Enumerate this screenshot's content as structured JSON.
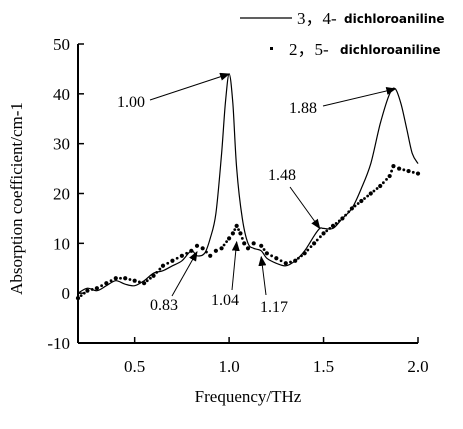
{
  "chart_data": {
    "type": "line",
    "xlabel": "Frequency/THz",
    "ylabel": "Absorption coefficient/cm-1",
    "xlim": [
      0.2,
      2.0
    ],
    "ylim": [
      -10,
      50
    ],
    "xticks": [
      0.5,
      1.0,
      1.5,
      2.0
    ],
    "xtick_labels": [
      "0.5",
      "1.0",
      "1.5",
      "2.0"
    ],
    "yticks": [
      -10,
      0,
      10,
      20,
      30,
      40,
      50
    ],
    "ytick_labels": [
      "-10",
      "0",
      "10",
      "20",
      "30",
      "40",
      "50"
    ],
    "legend_position": "top-right",
    "series": [
      {
        "name": "3，4-dichloroaniline",
        "legend_number": "3，4-",
        "legend_name": "dichloroaniline",
        "style": "line",
        "x": [
          0.2,
          0.25,
          0.3,
          0.35,
          0.4,
          0.45,
          0.5,
          0.55,
          0.6,
          0.65,
          0.7,
          0.75,
          0.8,
          0.83,
          0.87,
          0.9,
          0.93,
          0.96,
          0.98,
          1.0,
          1.02,
          1.04,
          1.07,
          1.1,
          1.13,
          1.17,
          1.2,
          1.25,
          1.3,
          1.35,
          1.4,
          1.45,
          1.48,
          1.5,
          1.55,
          1.6,
          1.65,
          1.7,
          1.75,
          1.8,
          1.85,
          1.88,
          1.91,
          1.94,
          1.97,
          2.0
        ],
        "y": [
          0.0,
          1.0,
          0.5,
          1.5,
          2.5,
          1.8,
          1.5,
          2.5,
          4.0,
          4.5,
          5.5,
          6.5,
          8.5,
          7.5,
          8.0,
          11.0,
          16.0,
          28.0,
          38.0,
          44.0,
          38.0,
          25.0,
          15.0,
          10.0,
          9.0,
          8.5,
          7.0,
          6.0,
          5.5,
          6.5,
          8.5,
          11.5,
          13.0,
          13.0,
          13.0,
          15.0,
          17.0,
          21.0,
          26.0,
          34.0,
          40.0,
          41.0,
          38.0,
          33.0,
          28.0,
          26.0
        ]
      },
      {
        "name": "2，5-dichloroaniline",
        "legend_number": "2，5-",
        "legend_name": "dichloroaniline",
        "style": "dotted",
        "x": [
          0.2,
          0.25,
          0.3,
          0.35,
          0.4,
          0.45,
          0.5,
          0.55,
          0.6,
          0.65,
          0.7,
          0.75,
          0.8,
          0.83,
          0.86,
          0.9,
          0.93,
          0.96,
          1.0,
          1.02,
          1.04,
          1.06,
          1.08,
          1.1,
          1.13,
          1.17,
          1.2,
          1.25,
          1.3,
          1.35,
          1.4,
          1.45,
          1.5,
          1.55,
          1.6,
          1.65,
          1.7,
          1.75,
          1.8,
          1.85,
          1.87,
          1.9,
          1.95,
          2.0
        ],
        "y": [
          -1.0,
          0.5,
          1.0,
          2.0,
          3.0,
          3.0,
          2.5,
          2.0,
          3.5,
          5.5,
          6.5,
          7.5,
          8.5,
          9.5,
          9.0,
          7.5,
          8.5,
          9.0,
          11.0,
          12.0,
          13.5,
          12.0,
          10.0,
          9.0,
          10.0,
          9.5,
          8.0,
          7.0,
          6.0,
          6.5,
          8.0,
          10.0,
          12.0,
          13.5,
          15.0,
          17.0,
          18.5,
          20.0,
          21.5,
          23.5,
          25.5,
          25.0,
          24.5,
          24.0
        ]
      }
    ],
    "annotations": [
      {
        "text": "1.00",
        "target_x": 1.0,
        "target_y": 44.0
      },
      {
        "text": "1.88",
        "target_x": 1.88,
        "target_y": 41.0
      },
      {
        "text": "1.48",
        "target_x": 1.48,
        "target_y": 13.0
      },
      {
        "text": "0.83",
        "target_x": 0.83,
        "target_y": 9.5
      },
      {
        "text": "1.04",
        "target_x": 1.04,
        "target_y": 11.5
      },
      {
        "text": "1.17",
        "target_x": 1.17,
        "target_y": 8.5
      }
    ]
  }
}
